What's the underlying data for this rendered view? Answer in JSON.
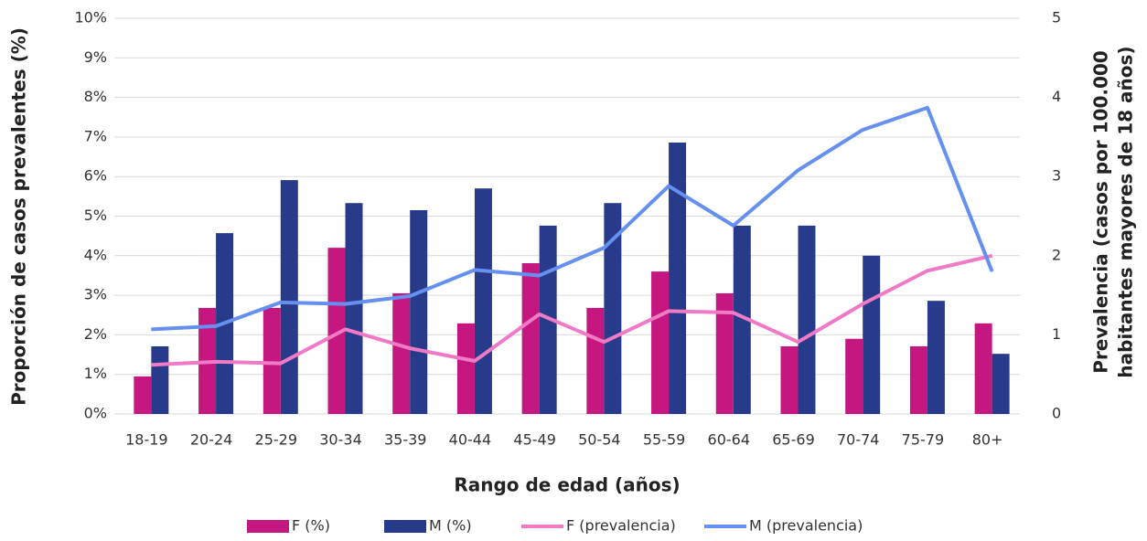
{
  "chart_data": {
    "type": "bar_line",
    "x_label": "Rango de edad (años)",
    "y_label": "Proporción de casos prevalentes (%)",
    "y2_label": [
      "Prevalencia (casos por 100.000",
      "habitantes mayores de 18 años)"
    ],
    "categories": [
      "18-19",
      "20-24",
      "25-29",
      "30-34",
      "35-39",
      "40-44",
      "45-49",
      "50-54",
      "55-59",
      "60-64",
      "65-69",
      "70-74",
      "75-79",
      "80+"
    ],
    "series": [
      {
        "name": "F (%)",
        "type": "bar",
        "color": "#c4177f",
        "values": [
          0.95,
          2.68,
          2.68,
          4.2,
          3.05,
          2.29,
          3.81,
          2.68,
          3.6,
          3.05,
          1.71,
          1.9,
          1.71,
          2.29
        ]
      },
      {
        "name": "M (%)",
        "type": "bar",
        "color": "#283a8a",
        "values": [
          1.71,
          4.57,
          5.91,
          5.33,
          5.15,
          5.7,
          4.76,
          5.33,
          6.86,
          4.76,
          4.76,
          4.0,
          2.86,
          1.52
        ]
      },
      {
        "name": "F (prevalencia)",
        "type": "line",
        "axis": "y2",
        "color": "#f07ac6",
        "values": [
          0.62,
          0.66,
          0.64,
          1.07,
          0.83,
          0.67,
          1.26,
          0.91,
          1.3,
          1.28,
          0.91,
          1.39,
          1.81,
          2.0
        ]
      },
      {
        "name": "M (prevalencia)",
        "type": "line",
        "axis": "y2",
        "color": "#6690ef",
        "values": [
          1.07,
          1.11,
          1.41,
          1.39,
          1.49,
          1.82,
          1.75,
          2.1,
          2.88,
          2.38,
          3.08,
          3.59,
          3.87,
          1.8
        ]
      }
    ],
    "ylim": [
      0,
      10
    ],
    "yticks": [
      {
        "value": 0,
        "label": "0%"
      },
      {
        "value": 1,
        "label": "1%"
      },
      {
        "value": 2,
        "label": "2%"
      },
      {
        "value": 3,
        "label": "3%"
      },
      {
        "value": 4,
        "label": "4%"
      },
      {
        "value": 5,
        "label": "5%"
      },
      {
        "value": 6,
        "label": "6%"
      },
      {
        "value": 7,
        "label": "7%"
      },
      {
        "value": 8,
        "label": "8%"
      },
      {
        "value": 9,
        "label": "9%"
      },
      {
        "value": 10,
        "label": "10%"
      }
    ],
    "y2lim": [
      0,
      5
    ],
    "y2ticks": [
      0,
      1,
      2,
      3,
      4,
      5
    ],
    "grid": true,
    "legend": "bottom"
  }
}
